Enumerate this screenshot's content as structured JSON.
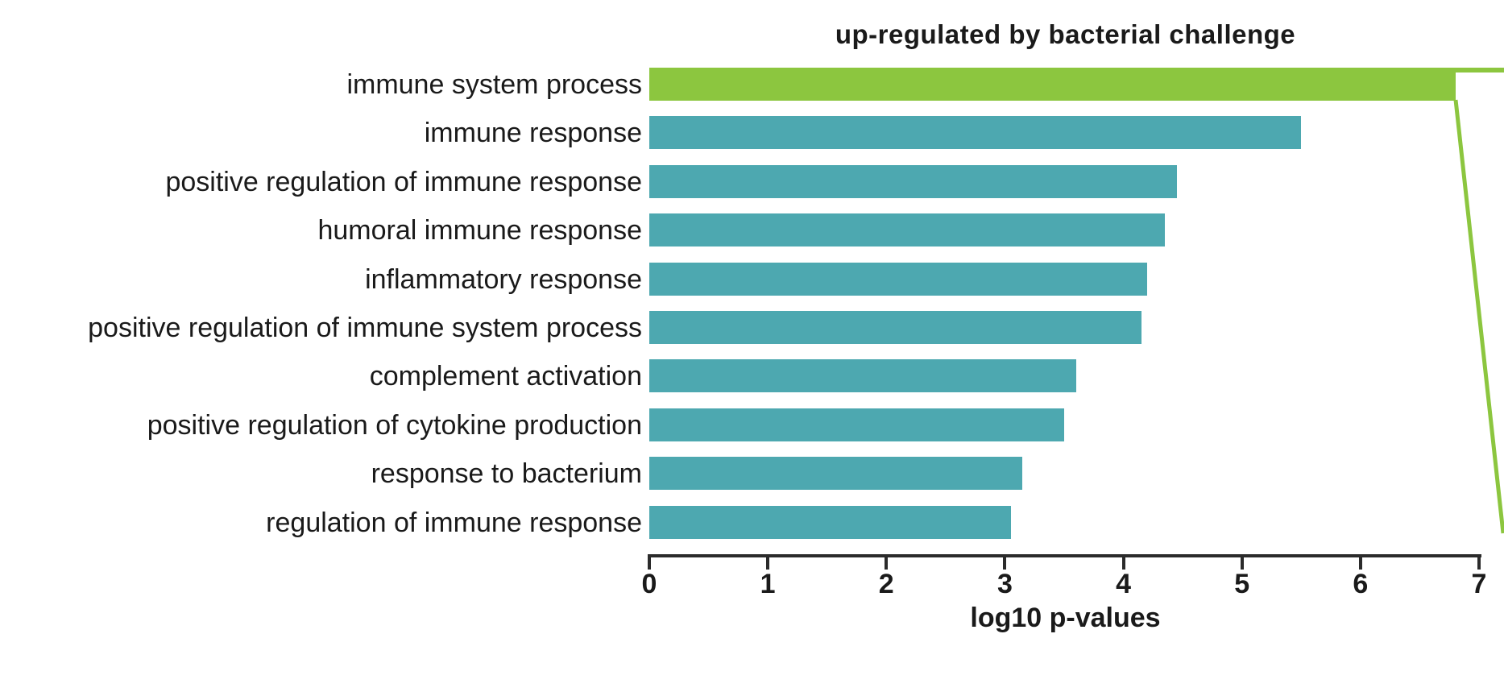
{
  "chart_data": {
    "type": "bar",
    "orientation": "horizontal",
    "title": "up-regulated by bacterial challenge",
    "xlabel": "log10 p-values",
    "xlim": [
      0,
      7
    ],
    "xticks": [
      "0",
      "1",
      "2",
      "3",
      "4",
      "5",
      "6",
      "7"
    ],
    "grid": false,
    "legend": null,
    "categories": [
      "immune system process",
      "immune response",
      "positive regulation of immune response",
      "humoral immune response",
      "inflammatory response",
      "positive regulation of immune system process",
      "complement activation",
      "positive regulation of cytokine production",
      "response to bacterium",
      "regulation of immune response"
    ],
    "values": [
      6.8,
      5.5,
      4.45,
      4.35,
      4.2,
      4.15,
      3.6,
      3.5,
      3.15,
      3.05
    ],
    "highlight": {
      "index": 0,
      "off_scale": true,
      "note": "green bar exceeds axis maximum; green break lines extend to figure edge"
    },
    "colors": {
      "highlight_bar": "#8cc63f",
      "default_bar": "#4da8b0",
      "axis": "#2b2b2b",
      "text": "#1a1a1a",
      "background": "#ffffff"
    }
  }
}
